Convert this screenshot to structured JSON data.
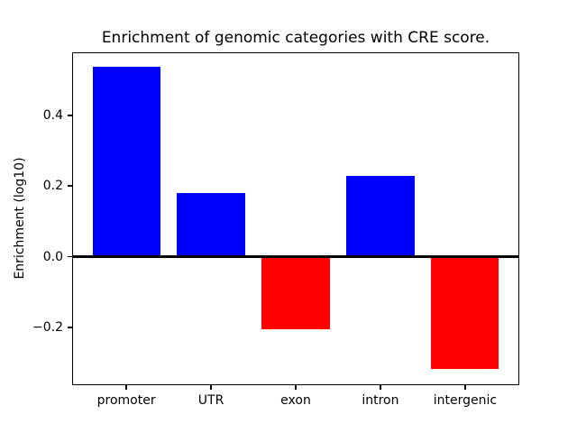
{
  "chart_data": {
    "type": "bar",
    "title": "Enrichment of genomic categories with CRE score.",
    "ylabel": "Enrichment (log10)",
    "xlabel": "",
    "categories": [
      "promoter",
      "UTR",
      "exon",
      "intron",
      "intergenic"
    ],
    "values": [
      0.538,
      0.179,
      -0.205,
      0.228,
      -0.318
    ],
    "bar_colors": [
      "#0000ff",
      "#0000ff",
      "#ff0000",
      "#0000ff",
      "#ff0000"
    ],
    "positive_color": "#0000ff",
    "negative_color": "#ff0000",
    "yticks": [
      {
        "value": 0.4,
        "label": "0.4"
      },
      {
        "value": 0.2,
        "label": "0.2"
      },
      {
        "value": 0.0,
        "label": "0.0"
      },
      {
        "value": -0.2,
        "label": "−0.2"
      }
    ],
    "ylim": [
      -0.363,
      0.578
    ],
    "xlim": [
      -0.64,
      4.64
    ],
    "bar_width": 0.8,
    "zero_line": {
      "value": 0,
      "color": "#000000",
      "thickness_px": 3
    },
    "grid": false,
    "legend": false,
    "plot_background": "#ffffff"
  }
}
